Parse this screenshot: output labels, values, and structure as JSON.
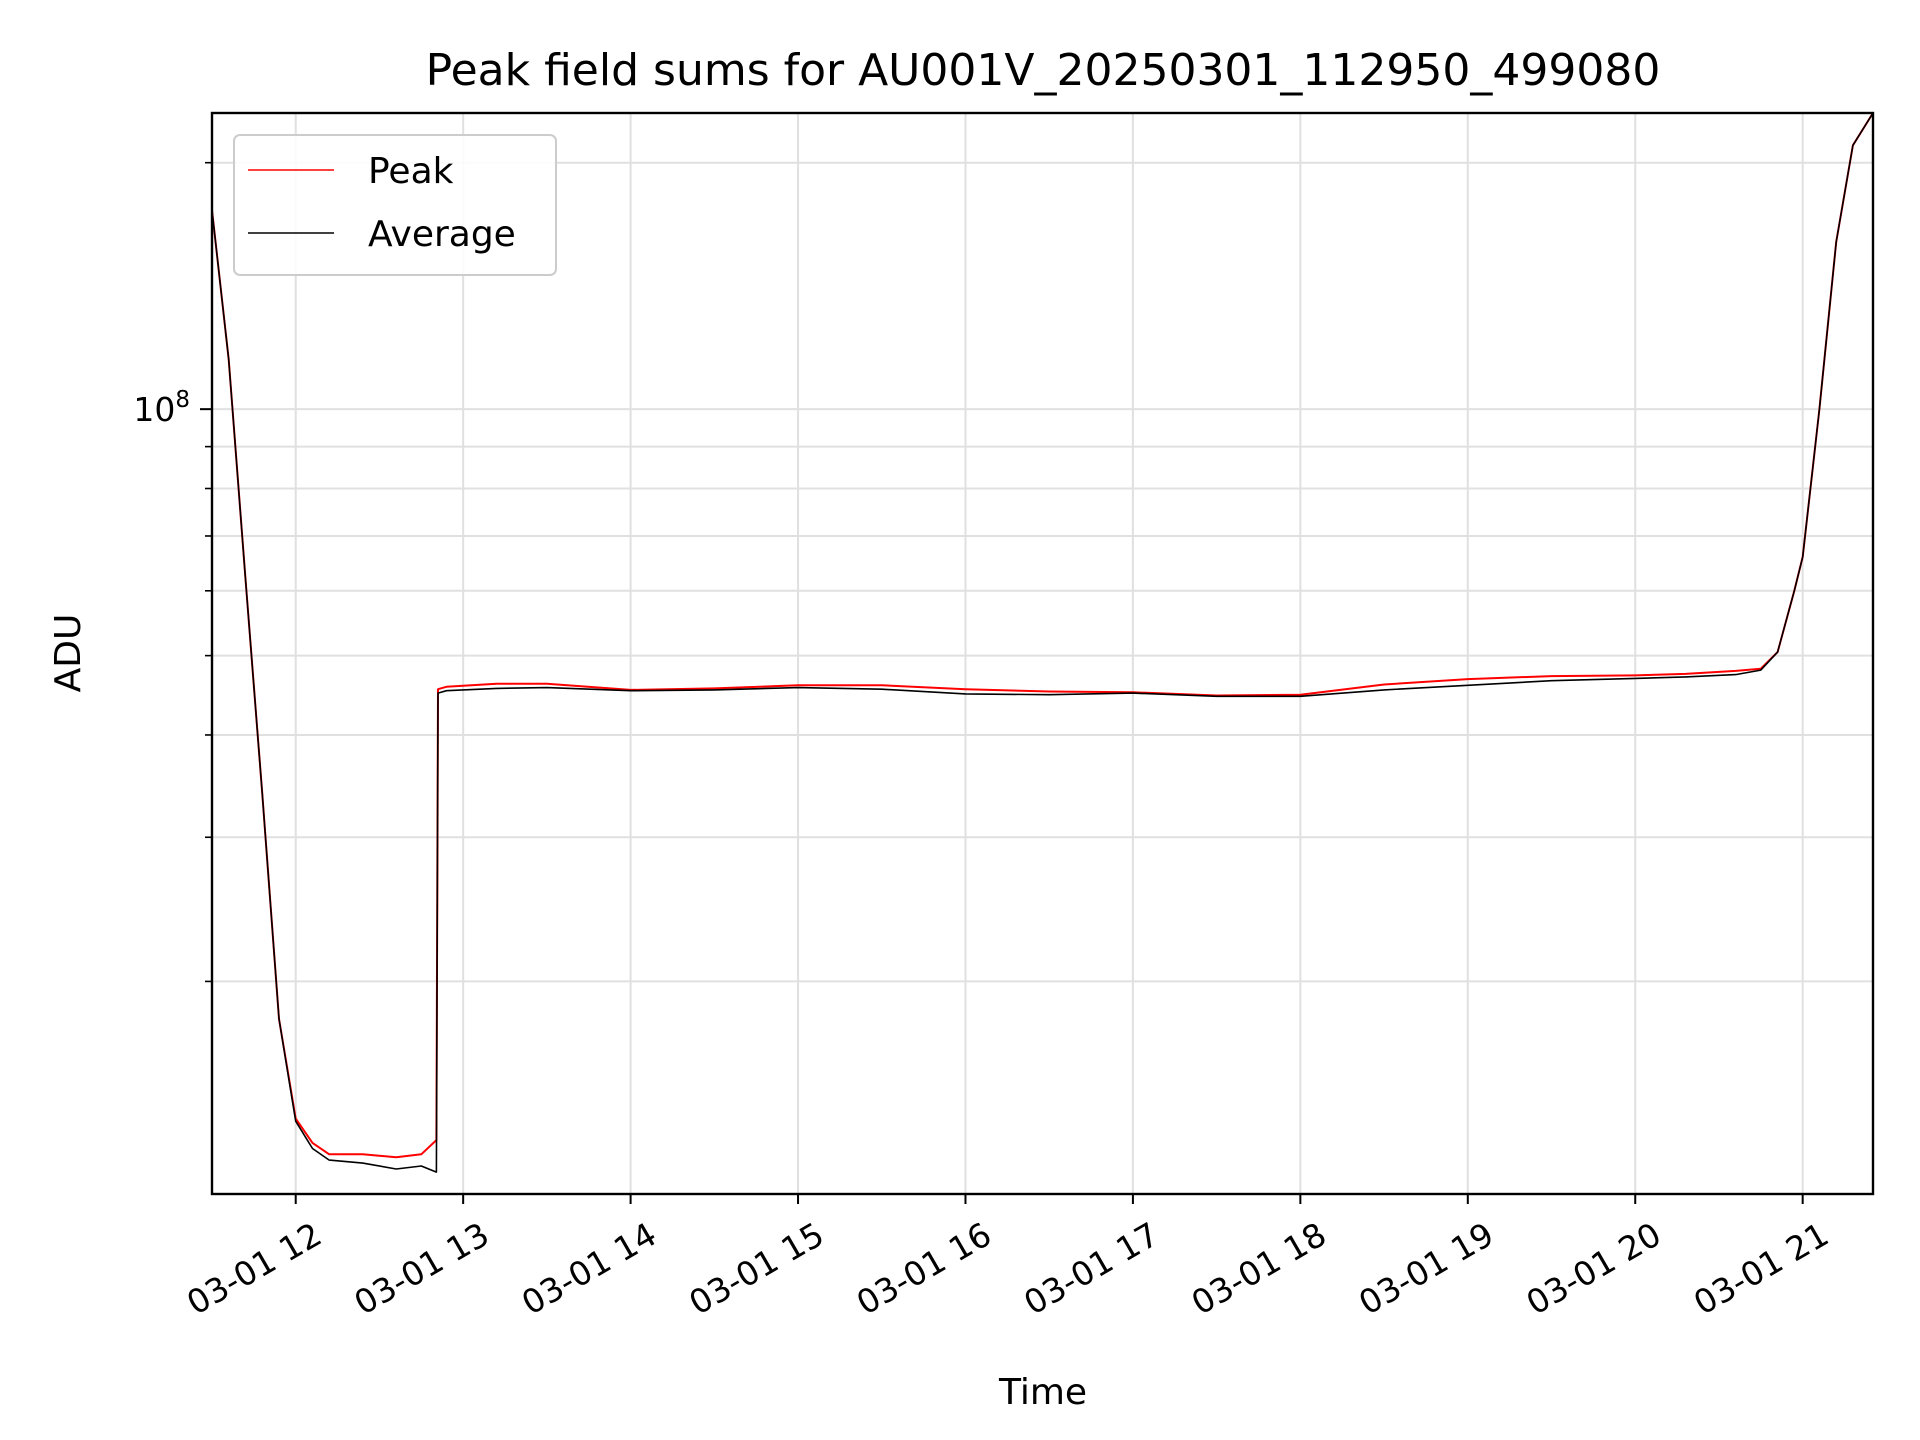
{
  "chart_data": {
    "type": "line",
    "title": "Peak field sums for AU001V_20250301_112950_499080",
    "xlabel": "Time",
    "ylabel": "ADU",
    "x_unit": "hours on 2025-03-01",
    "xlim": [
      11.5,
      21.42
    ],
    "ylim": [
      11000000,
      230000000
    ],
    "yscale": "log",
    "grid": true,
    "legend_position": "upper-left",
    "x_ticks": [
      {
        "value": 12,
        "label": "03-01 12"
      },
      {
        "value": 13,
        "label": "03-01 13"
      },
      {
        "value": 14,
        "label": "03-01 14"
      },
      {
        "value": 15,
        "label": "03-01 15"
      },
      {
        "value": 16,
        "label": "03-01 16"
      },
      {
        "value": 17,
        "label": "03-01 17"
      },
      {
        "value": 18,
        "label": "03-01 18"
      },
      {
        "value": 19,
        "label": "03-01 19"
      },
      {
        "value": 20,
        "label": "03-01 20"
      },
      {
        "value": 21,
        "label": "03-01 21"
      }
    ],
    "y_major_ticks": [
      {
        "value": 100000000,
        "base": "10",
        "exp": "8"
      }
    ],
    "y_minor_ticks": [
      20000000,
      30000000,
      40000000,
      50000000,
      60000000,
      70000000,
      80000000,
      90000000,
      200000000
    ],
    "series": [
      {
        "name": "Peak",
        "color": "#ff0000",
        "x": [
          11.5,
          11.6,
          11.7,
          11.8,
          11.9,
          12.0,
          12.1,
          12.2,
          12.4,
          12.6,
          12.75,
          12.84,
          12.85,
          12.9,
          13.2,
          13.5,
          14.0,
          14.5,
          15.0,
          15.5,
          16.0,
          16.5,
          17.0,
          17.5,
          18.0,
          18.5,
          19.0,
          19.5,
          20.0,
          20.3,
          20.6,
          20.75,
          20.85,
          20.95,
          21.0,
          21.1,
          21.2,
          21.3,
          21.42
        ],
        "values": [
          175000000,
          115000000,
          62000000,
          34000000,
          18000000,
          13600000,
          12700000,
          12300000,
          12300000,
          12200000,
          12300000,
          12800000,
          45500000,
          45800000,
          46200000,
          46200000,
          45400000,
          45600000,
          46000000,
          46000000,
          45500000,
          45200000,
          45100000,
          44700000,
          44800000,
          46100000,
          46800000,
          47200000,
          47300000,
          47500000,
          47900000,
          48200000,
          50500000,
          60000000,
          66000000,
          100000000,
          160000000,
          210000000,
          230000000
        ]
      },
      {
        "name": "Average",
        "color": "#000000",
        "x": [
          11.5,
          11.6,
          11.7,
          11.8,
          11.9,
          12.0,
          12.1,
          12.2,
          12.4,
          12.6,
          12.75,
          12.84,
          12.85,
          12.9,
          13.2,
          13.5,
          14.0,
          14.5,
          15.0,
          15.5,
          16.0,
          16.5,
          17.0,
          17.5,
          18.0,
          18.5,
          19.0,
          19.5,
          20.0,
          20.3,
          20.6,
          20.75,
          20.85,
          20.95,
          21.0,
          21.1,
          21.2,
          21.3,
          21.42
        ],
        "values": [
          175000000,
          115000000,
          62000000,
          34000000,
          18000000,
          13500000,
          12500000,
          12100000,
          12000000,
          11800000,
          11900000,
          11700000,
          45000000,
          45300000,
          45600000,
          45700000,
          45300000,
          45400000,
          45700000,
          45500000,
          44900000,
          44800000,
          45000000,
          44600000,
          44600000,
          45400000,
          46000000,
          46600000,
          46900000,
          47100000,
          47400000,
          48000000,
          50500000,
          60000000,
          66000000,
          100000000,
          160000000,
          210000000,
          230000000
        ]
      }
    ]
  }
}
